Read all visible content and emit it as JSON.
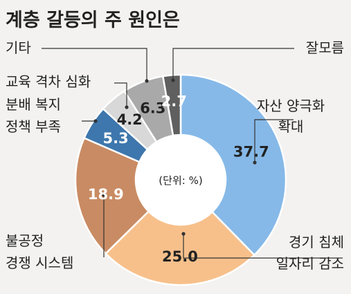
{
  "chart_data": {
    "type": "pie",
    "title": "계층 갈등의 주 원인은",
    "unit_label": "(단위: %)",
    "slices": [
      {
        "label_lines": [
          "자산 양극화",
          "확대"
        ],
        "value": 37.7,
        "value_text": "37.7",
        "color": "#86b9e8",
        "value_color": "#222222"
      },
      {
        "label_lines": [
          "경기 침체",
          "일자리 감소"
        ],
        "value": 25.0,
        "value_text": "25.0",
        "color": "#f7c08b",
        "value_color": "#222222"
      },
      {
        "label_lines": [
          "불공정",
          "경쟁 시스템"
        ],
        "value": 18.9,
        "value_text": "18.9",
        "color": "#c98b63",
        "value_color": "#ffffff"
      },
      {
        "label_lines": [
          "분배 복지",
          "정책 부족"
        ],
        "value": 5.3,
        "value_text": "5.3",
        "color": "#3e77ad",
        "value_color": "#ffffff"
      },
      {
        "label_lines": [
          "교육 격차 심화"
        ],
        "value": 4.2,
        "value_text": "4.2",
        "color": "#d8d8d8",
        "value_color": "#222222"
      },
      {
        "label_lines": [
          "기타"
        ],
        "value": 6.3,
        "value_text": "6.3",
        "color": "#a9a9a9",
        "value_color": "#222222"
      },
      {
        "label_lines": [
          "잘모름"
        ],
        "value": 2.7,
        "value_text": "2.7",
        "color": "#5f5f5f",
        "value_color": "#ffffff"
      }
    ]
  }
}
